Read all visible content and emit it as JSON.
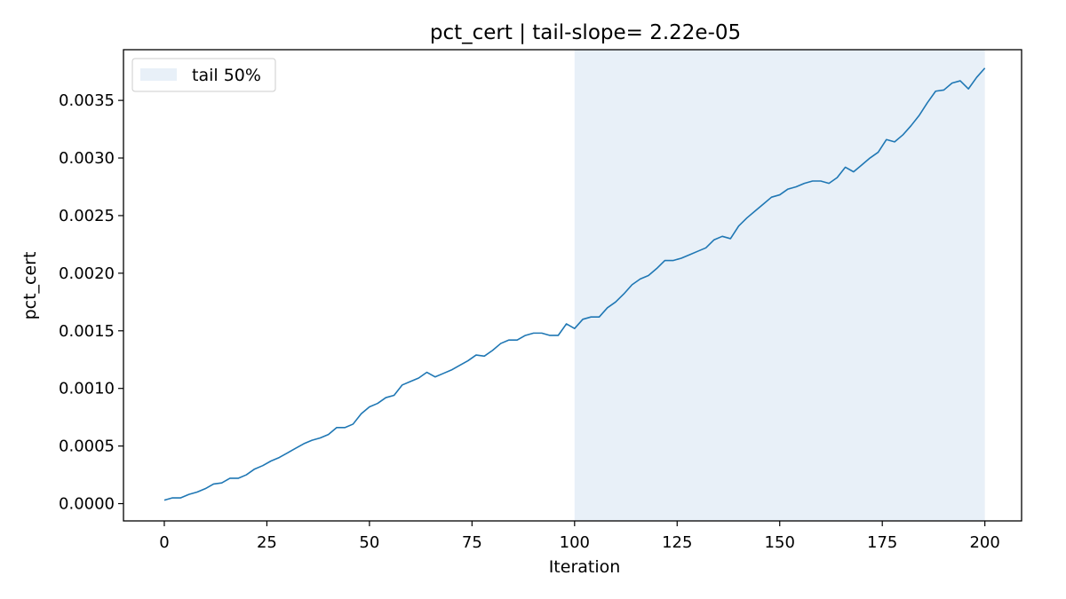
{
  "chart_data": {
    "type": "line",
    "title": "pct_cert | tail-slope= 2.22e-05",
    "xlabel": "Iteration",
    "ylabel": "pct_cert",
    "xlim": [
      -9.95,
      208.95
    ],
    "ylim": [
      -0.00015,
      0.00394
    ],
    "xticks": [
      0,
      25,
      50,
      75,
      100,
      125,
      150,
      175,
      200
    ],
    "xtick_labels": [
      "0",
      "25",
      "50",
      "75",
      "100",
      "125",
      "150",
      "175",
      "200"
    ],
    "yticks": [
      0.0,
      0.0005,
      0.001,
      0.0015,
      0.002,
      0.0025,
      0.003,
      0.0035
    ],
    "ytick_labels": [
      "0.0000",
      "0.0005",
      "0.0010",
      "0.0015",
      "0.0020",
      "0.0025",
      "0.0030",
      "0.0035"
    ],
    "grid": false,
    "legend": {
      "position": "top-left",
      "entries": [
        {
          "label": "tail 50%",
          "color": "#e8f0f8"
        }
      ]
    },
    "shaded_region": {
      "label": "tail 50%",
      "x_start": 100,
      "x_end": 200,
      "color": "#e8f0f8"
    },
    "line_color": "#1f77b4",
    "series": [
      {
        "x": [
          0,
          2,
          4,
          6,
          8,
          10,
          12,
          14,
          16,
          18,
          20,
          22,
          24,
          26,
          28,
          30,
          32,
          34,
          36,
          38,
          40,
          42,
          44,
          46,
          48,
          50,
          52,
          54,
          56,
          58,
          60,
          62,
          64,
          66,
          68,
          70,
          72,
          74,
          76,
          78,
          80,
          82,
          84,
          86,
          88,
          90,
          92,
          94,
          96,
          98,
          100,
          102,
          104,
          106,
          108,
          110,
          112,
          114,
          116,
          118,
          120,
          122,
          124,
          126,
          128,
          130,
          132,
          134,
          136,
          138,
          140,
          142,
          144,
          146,
          148,
          150,
          152,
          154,
          156,
          158,
          160,
          162,
          164,
          166,
          168,
          170,
          172,
          174,
          176,
          178,
          180,
          182,
          184,
          186,
          188,
          190,
          192,
          194,
          196,
          198,
          200
        ],
        "values": [
          3e-05,
          5e-05,
          5e-05,
          8e-05,
          0.0001,
          0.00013,
          0.00017,
          0.00018,
          0.00022,
          0.00022,
          0.00025,
          0.0003,
          0.00033,
          0.00037,
          0.0004,
          0.00044,
          0.00048,
          0.00052,
          0.00055,
          0.00057,
          0.0006,
          0.00066,
          0.00066,
          0.00069,
          0.00078,
          0.00084,
          0.00087,
          0.00092,
          0.00094,
          0.00103,
          0.00106,
          0.00109,
          0.00114,
          0.0011,
          0.00113,
          0.00116,
          0.0012,
          0.00124,
          0.00129,
          0.00128,
          0.00133,
          0.00139,
          0.00142,
          0.00142,
          0.00146,
          0.00148,
          0.00148,
          0.00146,
          0.00146,
          0.00156,
          0.00152,
          0.0016,
          0.00162,
          0.00162,
          0.0017,
          0.00175,
          0.00182,
          0.0019,
          0.00195,
          0.00198,
          0.00204,
          0.00211,
          0.00211,
          0.00213,
          0.00216,
          0.00219,
          0.00222,
          0.00229,
          0.00232,
          0.0023,
          0.00241,
          0.00248,
          0.00254,
          0.0026,
          0.00266,
          0.00268,
          0.00273,
          0.00275,
          0.00278,
          0.0028,
          0.0028,
          0.00278,
          0.00283,
          0.00292,
          0.00288,
          0.00294,
          0.003,
          0.00305,
          0.00316,
          0.00314,
          0.0032,
          0.00328,
          0.00337,
          0.00348,
          0.00358,
          0.00359,
          0.00365,
          0.00367,
          0.0036,
          0.0037,
          0.00378
        ]
      }
    ]
  }
}
